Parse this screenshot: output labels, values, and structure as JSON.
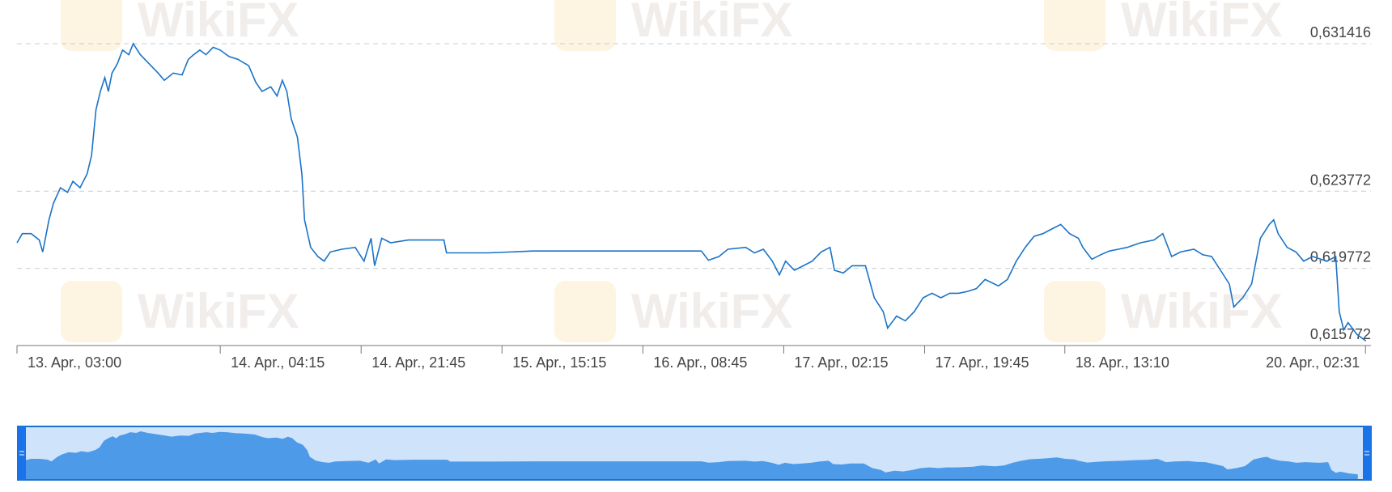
{
  "chart_data": {
    "type": "line",
    "watermark": "WikiFX",
    "x": [
      315,
      315.66,
      316.76,
      317.76,
      318.2,
      318.97,
      319.52,
      320.4,
      321.28,
      321.95,
      322.83,
      323.71,
      324.26,
      324.81,
      325.36,
      325.91,
      326.35,
      326.8,
      327.46,
      328.12,
      328.89,
      329.44,
      330.32,
      331.43,
      332.53,
      333.3,
      334.41,
      335.51,
      336.28,
      336.94,
      337.71,
      338.48,
      339.37,
      340.25,
      341.35,
      342.45,
      343.78,
      344.66,
      345.43,
      346.53,
      347.3,
      347.97,
      348.52,
      349.07,
      349.84,
      350.39,
      350.72,
      351.49,
      352.38,
      353.15,
      353.92,
      355.35,
      357.01,
      358.11,
      358.99,
      359.43,
      360.31,
      361.42,
      363.62,
      365.83,
      368.03,
      368.36,
      373.54,
      379.06,
      390.08,
      400.01,
      400.89,
      402.21,
      403.31,
      405.52,
      406.62,
      407.72,
      408.83,
      409.71,
      410.48,
      411.58,
      412.69,
      413.79,
      414.89,
      416,
      416.55,
      417.65,
      418.75,
      420.4,
      421.5,
      422.61,
      423.16,
      424.26,
      425.36,
      426.47,
      427.57,
      428.67,
      429.77,
      430.88,
      431.98,
      433.08,
      434.18,
      435.26,
      436.92,
      438.04,
      439.14,
      440.25,
      441.35,
      442.45,
      443.55,
      444.66,
      445.76,
      446.86,
      447.41,
      448.52,
      449.62,
      450.72,
      451.82,
      452.93,
      454.58,
      456.24,
      457.34,
      458.44,
      459.54,
      461.2,
      462.3,
      463.4,
      464.51,
      465.61,
      466.16,
      467.26,
      468.37,
      469.47,
      470.57,
      471.12,
      471.67,
      472.78,
      473.88,
      474.85,
      475.95,
      477.73,
      478.83,
      479.26,
      479.81,
      480.35,
      481.47,
      482.57
    ],
    "series": [
      {
        "color": "#1a73c8",
        "values": [
          0.621098,
          0.621573,
          0.621573,
          0.62124,
          0.620622,
          0.622286,
          0.623142,
          0.623951,
          0.623713,
          0.624283,
          0.623951,
          0.624664,
          0.625615,
          0.627992,
          0.628943,
          0.629657,
          0.628943,
          0.629894,
          0.63037,
          0.631083,
          0.630845,
          0.631416,
          0.630845,
          0.63037,
          0.629894,
          0.629514,
          0.629894,
          0.629799,
          0.630608,
          0.630845,
          0.631083,
          0.630845,
          0.631226,
          0.631083,
          0.63075,
          0.630608,
          0.630275,
          0.629419,
          0.628943,
          0.629181,
          0.628706,
          0.629514,
          0.628943,
          0.627517,
          0.626566,
          0.624664,
          0.622286,
          0.62086,
          0.620384,
          0.620146,
          0.620622,
          0.620765,
          0.62086,
          0.620146,
          0.621335,
          0.619909,
          0.621335,
          0.621098,
          0.62124,
          0.62124,
          0.62124,
          0.620575,
          0.620575,
          0.62067,
          0.62067,
          0.62067,
          0.620194,
          0.620384,
          0.620765,
          0.62086,
          0.620575,
          0.620765,
          0.620146,
          0.619433,
          0.620146,
          0.619671,
          0.619909,
          0.620146,
          0.620622,
          0.62086,
          0.619671,
          0.619528,
          0.619909,
          0.619909,
          0.618245,
          0.617531,
          0.616675,
          0.617294,
          0.617056,
          0.617531,
          0.618245,
          0.618482,
          0.618245,
          0.618482,
          0.618482,
          0.618577,
          0.61872,
          0.619196,
          0.618863,
          0.619196,
          0.620146,
          0.62086,
          0.62143,
          0.621573,
          0.621811,
          0.622049,
          0.621573,
          0.621335,
          0.62086,
          0.620242,
          0.620479,
          0.62067,
          0.620765,
          0.62086,
          0.621098,
          0.62124,
          0.621573,
          0.620384,
          0.620622,
          0.620765,
          0.620479,
          0.620384,
          0.619671,
          0.618958,
          0.617769,
          0.618245,
          0.618958,
          0.621335,
          0.622049,
          0.622286,
          0.621573,
          0.62086,
          0.620622,
          0.620146,
          0.620384,
          0.620146,
          0.620384,
          0.617531,
          0.61658,
          0.616961,
          0.616343,
          0.61601
        ]
      }
    ],
    "xlim": [
      315,
      483.2
    ],
    "xticks": [
      {
        "value": 315,
        "label": "13. Apr., 03:00"
      },
      {
        "value": 340.25,
        "label": "14. Apr., 04:15"
      },
      {
        "value": 357.75,
        "label": "14. Apr., 21:45"
      },
      {
        "value": 375.25,
        "label": "15. Apr., 15:15"
      },
      {
        "value": 392.75,
        "label": "16. Apr., 08:45"
      },
      {
        "value": 410.25,
        "label": "17. Apr., 02:15"
      },
      {
        "value": 427.75,
        "label": "17. Apr., 19:45"
      },
      {
        "value": 445.17,
        "label": "18. Apr., 13:10"
      },
      {
        "value": 482.52,
        "label": "20. Apr., 02:31"
      }
    ],
    "ylim": [
      0.615772,
      0.631416
    ],
    "yticks": [
      {
        "value": 0.615772,
        "label": "0,615772"
      },
      {
        "value": 0.619772,
        "label": "0,619772"
      },
      {
        "value": 0.623772,
        "label": "0,623772"
      },
      {
        "value": 0.631416,
        "label": "0,631416"
      }
    ],
    "grid": true
  }
}
